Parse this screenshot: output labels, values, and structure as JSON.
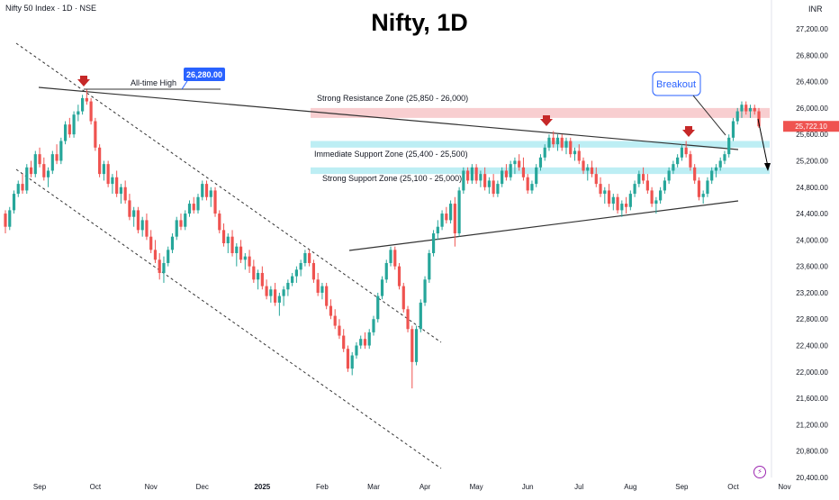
{
  "header": {
    "symbol_info": "Nifty 50 Index · 1D · NSE",
    "title": "Nifty, 1D",
    "currency": "INR"
  },
  "chart_data": {
    "type": "candlestick",
    "title": "Nifty, 1D",
    "xlabel": "",
    "ylabel": "",
    "ylim": [
      20000,
      27400
    ],
    "y_ticks": [
      "27,200.00",
      "26,800.00",
      "26,400.00",
      "26,000.00",
      "25,600.00",
      "25,200.00",
      "24,800.00",
      "24,400.00",
      "24,000.00",
      "23,600.00",
      "23,200.00",
      "22,800.00",
      "22,400.00",
      "22,000.00",
      "21,600.00",
      "21,200.00",
      "20,800.00",
      "20,400.00"
    ],
    "x_ticks": [
      {
        "label": "Sep",
        "idx": 8
      },
      {
        "label": "Oct",
        "idx": 21
      },
      {
        "label": "Nov",
        "idx": 34
      },
      {
        "label": "Dec",
        "idx": 46
      },
      {
        "label": "2025",
        "idx": 60
      },
      {
        "label": "Feb",
        "idx": 74
      },
      {
        "label": "Mar",
        "idx": 86
      },
      {
        "label": "Apr",
        "idx": 98
      },
      {
        "label": "May",
        "idx": 110
      },
      {
        "label": "Jun",
        "idx": 122
      },
      {
        "label": "Jul",
        "idx": 134
      },
      {
        "label": "Aug",
        "idx": 146
      },
      {
        "label": "Sep",
        "idx": 158
      },
      {
        "label": "Oct",
        "idx": 170
      },
      {
        "label": "Nov",
        "idx": 182
      }
    ],
    "current_price": "25,722.10",
    "colors": {
      "up": "#26a69a",
      "down": "#ef5350",
      "resistance": "#f7c5c8",
      "support": "#b2ebf2",
      "label_blue": "#2962ff",
      "marker": "#c62828"
    },
    "zones": [
      {
        "label": "Strong Resistance Zone (25,850 - 26,000)",
        "low": 25850,
        "high": 26000,
        "color": "#f7c5c8"
      },
      {
        "label": "Immediate Support Zone (25,400 - 25,500)",
        "low": 25400,
        "high": 25500,
        "color": "#b2ebf2"
      },
      {
        "label": "Strong Support Zone (25,100 - 25,000)",
        "low": 25000,
        "high": 25100,
        "color": "#b2ebf2"
      }
    ],
    "annotations": {
      "ath_label": "All-time High",
      "ath_value": "26,280.00",
      "breakout": "Breakout"
    },
    "candles": [
      [
        24400,
        24450,
        24100,
        24200
      ],
      [
        24200,
        24500,
        24150,
        24450
      ],
      [
        24450,
        24750,
        24400,
        24700
      ],
      [
        24700,
        24900,
        24650,
        24850
      ],
      [
        24850,
        25000,
        24700,
        24750
      ],
      [
        24750,
        25150,
        24700,
        25100
      ],
      [
        25100,
        25200,
        24950,
        25000
      ],
      [
        25000,
        25350,
        24950,
        25300
      ],
      [
        25300,
        25400,
        25100,
        25150
      ],
      [
        25150,
        25250,
        24900,
        24950
      ],
      [
        24950,
        25100,
        24800,
        25050
      ],
      [
        25050,
        25350,
        25000,
        25300
      ],
      [
        25300,
        25450,
        25150,
        25200
      ],
      [
        25200,
        25550,
        25150,
        25500
      ],
      [
        25500,
        25800,
        25450,
        25750
      ],
      [
        25750,
        25850,
        25550,
        25600
      ],
      [
        25600,
        25950,
        25550,
        25900
      ],
      [
        25900,
        26050,
        25800,
        25950
      ],
      [
        25950,
        26200,
        25900,
        26150
      ],
      [
        26150,
        26280,
        26050,
        26100
      ],
      [
        26100,
        26150,
        25750,
        25800
      ],
      [
        25800,
        25850,
        25350,
        25400
      ],
      [
        25400,
        25450,
        24950,
        25000
      ],
      [
        25000,
        25200,
        24900,
        25150
      ],
      [
        25150,
        25200,
        24800,
        24850
      ],
      [
        24850,
        25000,
        24700,
        24950
      ],
      [
        24950,
        25050,
        24650,
        24700
      ],
      [
        24700,
        24850,
        24550,
        24800
      ],
      [
        24800,
        24900,
        24550,
        24600
      ],
      [
        24600,
        24700,
        24300,
        24350
      ],
      [
        24350,
        24500,
        24200,
        24450
      ],
      [
        24450,
        24500,
        24100,
        24150
      ],
      [
        24150,
        24350,
        24050,
        24300
      ],
      [
        24300,
        24400,
        24000,
        24050
      ],
      [
        24050,
        24150,
        23800,
        23850
      ],
      [
        23850,
        24000,
        23650,
        23700
      ],
      [
        23700,
        23800,
        23400,
        23500
      ],
      [
        23500,
        23750,
        23350,
        23650
      ],
      [
        23650,
        23900,
        23600,
        23850
      ],
      [
        23850,
        24100,
        23800,
        24050
      ],
      [
        24050,
        24350,
        24000,
        24300
      ],
      [
        24300,
        24400,
        24150,
        24200
      ],
      [
        24200,
        24450,
        24150,
        24400
      ],
      [
        24400,
        24600,
        24350,
        24550
      ],
      [
        24550,
        24650,
        24400,
        24450
      ],
      [
        24450,
        24700,
        24400,
        24650
      ],
      [
        24650,
        24900,
        24600,
        24850
      ],
      [
        24850,
        24900,
        24600,
        24650
      ],
      [
        24650,
        24800,
        24500,
        24750
      ],
      [
        24750,
        24800,
        24350,
        24400
      ],
      [
        24400,
        24450,
        24100,
        24150
      ],
      [
        24150,
        24250,
        23900,
        23950
      ],
      [
        23950,
        24100,
        23800,
        24050
      ],
      [
        24050,
        24150,
        23750,
        23800
      ],
      [
        23800,
        23950,
        23600,
        23900
      ],
      [
        23900,
        24000,
        23650,
        23700
      ],
      [
        23700,
        23800,
        23550,
        23750
      ],
      [
        23750,
        23850,
        23500,
        23600
      ],
      [
        23600,
        23700,
        23350,
        23400
      ],
      [
        23400,
        23550,
        23250,
        23500
      ],
      [
        23500,
        23600,
        23250,
        23300
      ],
      [
        23300,
        23400,
        23100,
        23150
      ],
      [
        23150,
        23300,
        23050,
        23250
      ],
      [
        23250,
        23350,
        23000,
        23050
      ],
      [
        23050,
        23200,
        22850,
        23150
      ],
      [
        23150,
        23300,
        23000,
        23250
      ],
      [
        23250,
        23400,
        23150,
        23350
      ],
      [
        23350,
        23500,
        23300,
        23450
      ],
      [
        23450,
        23600,
        23350,
        23550
      ],
      [
        23550,
        23700,
        23450,
        23650
      ],
      [
        23650,
        23850,
        23600,
        23800
      ],
      [
        23800,
        23850,
        23600,
        23650
      ],
      [
        23650,
        23700,
        23350,
        23400
      ],
      [
        23400,
        23500,
        23150,
        23200
      ],
      [
        23200,
        23350,
        23100,
        23300
      ],
      [
        23300,
        23350,
        22950,
        23000
      ],
      [
        23000,
        23100,
        22800,
        22850
      ],
      [
        22850,
        22950,
        22650,
        22700
      ],
      [
        22700,
        22800,
        22500,
        22550
      ],
      [
        22550,
        22650,
        22300,
        22350
      ],
      [
        22350,
        22400,
        22000,
        22050
      ],
      [
        22050,
        22300,
        21950,
        22250
      ],
      [
        22250,
        22450,
        22200,
        22400
      ],
      [
        22400,
        22550,
        22350,
        22500
      ],
      [
        22500,
        22600,
        22350,
        22400
      ],
      [
        22400,
        22650,
        22350,
        22600
      ],
      [
        22600,
        22850,
        22550,
        22800
      ],
      [
        22800,
        23200,
        22750,
        23150
      ],
      [
        23150,
        23450,
        23100,
        23400
      ],
      [
        23400,
        23700,
        23350,
        23650
      ],
      [
        23650,
        23900,
        23600,
        23850
      ],
      [
        23850,
        23900,
        23550,
        23600
      ],
      [
        23600,
        23650,
        23250,
        23300
      ],
      [
        23300,
        23350,
        22900,
        22950
      ],
      [
        22950,
        23000,
        22600,
        22650
      ],
      [
        22650,
        22700,
        21750,
        22150
      ],
      [
        22150,
        22700,
        22100,
        22650
      ],
      [
        22650,
        23100,
        22600,
        23050
      ],
      [
        23050,
        23450,
        23000,
        23400
      ],
      [
        23400,
        23850,
        23350,
        23800
      ],
      [
        23800,
        24150,
        23750,
        24100
      ],
      [
        24100,
        24300,
        24000,
        24200
      ],
      [
        24200,
        24450,
        24150,
        24400
      ],
      [
        24400,
        24500,
        24250,
        24300
      ],
      [
        24300,
        24600,
        24250,
        24550
      ],
      [
        24550,
        24650,
        23900,
        24100
      ],
      [
        24100,
        24800,
        24050,
        24750
      ],
      [
        24750,
        25100,
        24700,
        25050
      ],
      [
        25050,
        25100,
        24850,
        24900
      ],
      [
        24900,
        25150,
        24850,
        25100
      ],
      [
        25100,
        25150,
        24850,
        24900
      ],
      [
        24900,
        25050,
        24800,
        25000
      ],
      [
        25000,
        25100,
        24750,
        24800
      ],
      [
        24800,
        24950,
        24700,
        24900
      ],
      [
        24900,
        25000,
        24650,
        24700
      ],
      [
        24700,
        24900,
        24650,
        24850
      ],
      [
        24850,
        25100,
        24800,
        25050
      ],
      [
        25050,
        25150,
        24900,
        24950
      ],
      [
        24950,
        25200,
        24900,
        25150
      ],
      [
        25150,
        25250,
        25000,
        25200
      ],
      [
        25200,
        25300,
        25050,
        25100
      ],
      [
        25100,
        25250,
        24900,
        24950
      ],
      [
        24950,
        25000,
        24700,
        24750
      ],
      [
        24750,
        24900,
        24700,
        24850
      ],
      [
        24850,
        25150,
        24800,
        25100
      ],
      [
        25100,
        25300,
        25050,
        25250
      ],
      [
        25250,
        25450,
        25200,
        25400
      ],
      [
        25400,
        25600,
        25350,
        25550
      ],
      [
        25550,
        25650,
        25400,
        25450
      ],
      [
        25450,
        25600,
        25350,
        25550
      ],
      [
        25550,
        25600,
        25350,
        25400
      ],
      [
        25400,
        25550,
        25300,
        25500
      ],
      [
        25500,
        25550,
        25250,
        25300
      ],
      [
        25300,
        25400,
        25200,
        25350
      ],
      [
        25350,
        25450,
        25150,
        25200
      ],
      [
        25200,
        25250,
        25000,
        25050
      ],
      [
        25050,
        25150,
        24900,
        25100
      ],
      [
        25100,
        25200,
        24950,
        25000
      ],
      [
        25000,
        25100,
        24800,
        24850
      ],
      [
        24850,
        24950,
        24650,
        24700
      ],
      [
        24700,
        24800,
        24550,
        24750
      ],
      [
        24750,
        24850,
        24500,
        24550
      ],
      [
        24550,
        24700,
        24450,
        24650
      ],
      [
        24650,
        24700,
        24400,
        24450
      ],
      [
        24450,
        24600,
        24350,
        24550
      ],
      [
        24550,
        24650,
        24400,
        24500
      ],
      [
        24500,
        24750,
        24450,
        24700
      ],
      [
        24700,
        24900,
        24650,
        24850
      ],
      [
        24850,
        25050,
        24800,
        25000
      ],
      [
        25000,
        25100,
        24850,
        24900
      ],
      [
        24900,
        25000,
        24700,
        24750
      ],
      [
        24750,
        24800,
        24500,
        24550
      ],
      [
        24550,
        24650,
        24400,
        24600
      ],
      [
        24600,
        24800,
        24550,
        24750
      ],
      [
        24750,
        24950,
        24700,
        24900
      ],
      [
        24900,
        25100,
        24850,
        25050
      ],
      [
        25050,
        25200,
        25000,
        25150
      ],
      [
        25150,
        25300,
        25100,
        25250
      ],
      [
        25250,
        25450,
        25200,
        25400
      ],
      [
        25400,
        25500,
        25250,
        25300
      ],
      [
        25300,
        25350,
        25050,
        25100
      ],
      [
        25100,
        25150,
        24850,
        24900
      ],
      [
        24900,
        24950,
        24600,
        24650
      ],
      [
        24650,
        24750,
        24550,
        24700
      ],
      [
        24700,
        24950,
        24650,
        24900
      ],
      [
        24900,
        25100,
        24850,
        25050
      ],
      [
        25050,
        25150,
        24950,
        25100
      ],
      [
        25100,
        25250,
        25050,
        25200
      ],
      [
        25200,
        25350,
        25150,
        25300
      ],
      [
        25300,
        25600,
        25250,
        25550
      ],
      [
        25550,
        25850,
        25500,
        25800
      ],
      [
        25800,
        26000,
        25750,
        25950
      ],
      [
        25950,
        26100,
        25850,
        26050
      ],
      [
        26050,
        26100,
        25900,
        25950
      ],
      [
        25950,
        26050,
        25850,
        26000
      ],
      [
        26000,
        26050,
        25900,
        25950
      ],
      [
        25950,
        26000,
        25700,
        25722
      ]
    ]
  }
}
